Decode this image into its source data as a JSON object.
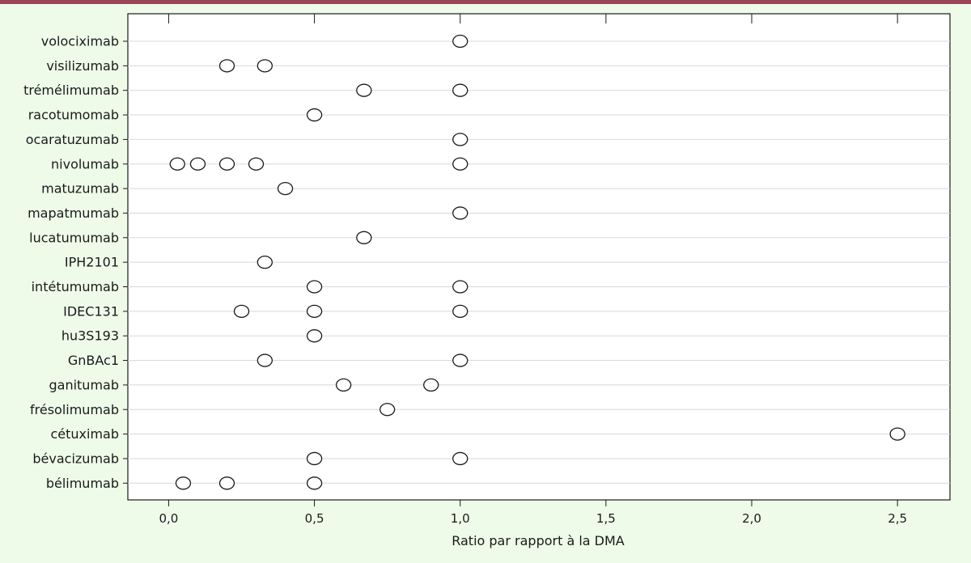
{
  "colors": {
    "background": "#eefbe9",
    "top_bar": "#9b4658",
    "plot_background": "#ffffff",
    "gridline": "#d8d8d8",
    "marker_fill": "#ffffff",
    "marker_stroke": "#1a1a1a"
  },
  "chart_data": {
    "type": "scatter",
    "title": "",
    "xlabel": "Ratio par rapport à la DMA",
    "ylabel": "",
    "xlim": [
      -0.14,
      2.68
    ],
    "xticks": [
      0.0,
      0.5,
      1.0,
      1.5,
      2.0,
      2.5
    ],
    "xtick_labels": [
      "0,0",
      "0,5",
      "1,0",
      "1,5",
      "2,0",
      "2,5"
    ],
    "grid": "horizontal",
    "categories": [
      "volociximab",
      "visilizumab",
      "trémélimumab",
      "racotumomab",
      "ocaratuzumab",
      "nivolumab",
      "matuzumab",
      "mapatmumab",
      "lucatumumab",
      "IPH2101",
      "intétumumab",
      "IDEC131",
      "hu3S193",
      "GnBAc1",
      "ganitumab",
      "frésolimumab",
      "cétuximab",
      "bévacizumab",
      "bélimumab"
    ],
    "points": [
      {
        "category": "volociximab",
        "values": [
          1.0
        ]
      },
      {
        "category": "visilizumab",
        "values": [
          0.2,
          0.33
        ]
      },
      {
        "category": "trémélimumab",
        "values": [
          0.67,
          1.0
        ]
      },
      {
        "category": "racotumomab",
        "values": [
          0.5
        ]
      },
      {
        "category": "ocaratuzumab",
        "values": [
          1.0
        ]
      },
      {
        "category": "nivolumab",
        "values": [
          0.03,
          0.1,
          0.2,
          0.3,
          1.0
        ]
      },
      {
        "category": "matuzumab",
        "values": [
          0.4
        ]
      },
      {
        "category": "mapatmumab",
        "values": [
          1.0
        ]
      },
      {
        "category": "lucatumumab",
        "values": [
          0.67
        ]
      },
      {
        "category": "IPH2101",
        "values": [
          0.33
        ]
      },
      {
        "category": "intétumumab",
        "values": [
          0.5,
          1.0
        ]
      },
      {
        "category": "IDEC131",
        "values": [
          0.25,
          0.5,
          1.0
        ]
      },
      {
        "category": "hu3S193",
        "values": [
          0.5
        ]
      },
      {
        "category": "GnBAc1",
        "values": [
          0.33,
          1.0
        ]
      },
      {
        "category": "ganitumab",
        "values": [
          0.6,
          0.9
        ]
      },
      {
        "category": "frésolimumab",
        "values": [
          0.75
        ]
      },
      {
        "category": "cétuximab",
        "values": [
          2.5
        ]
      },
      {
        "category": "bévacizumab",
        "values": [
          0.5,
          1.0
        ]
      },
      {
        "category": "bélimumab",
        "values": [
          0.05,
          0.2,
          0.5
        ]
      }
    ]
  }
}
